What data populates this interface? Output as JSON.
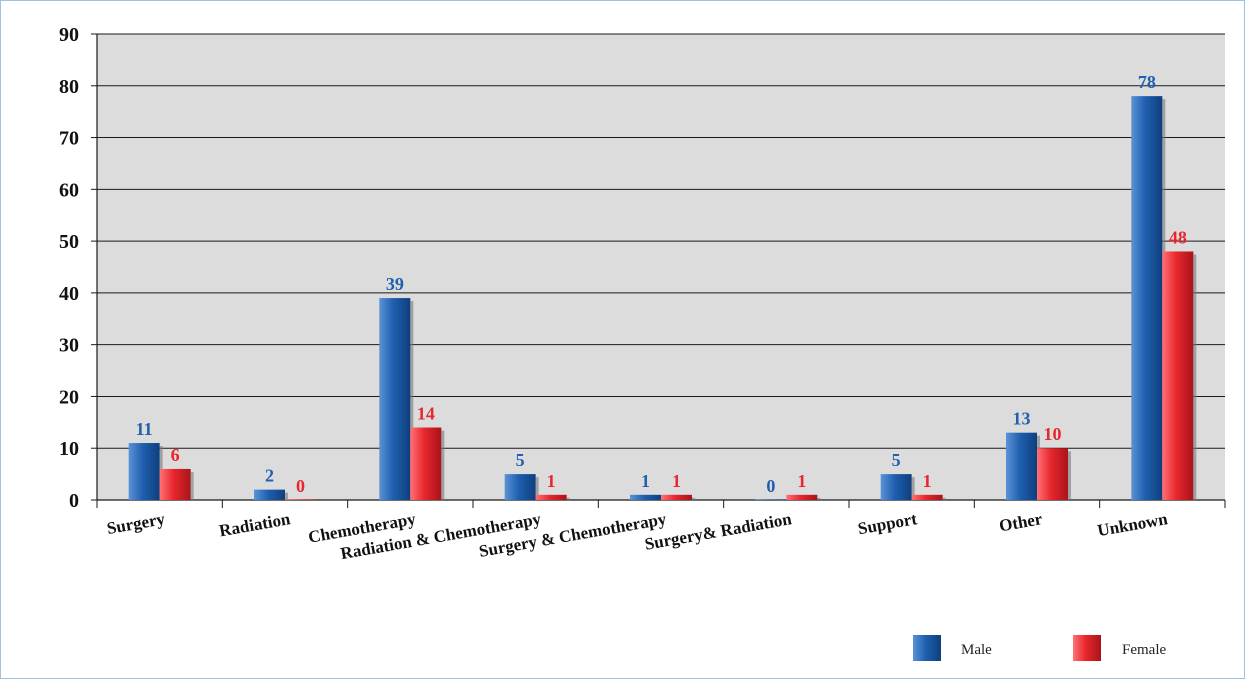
{
  "chart_data": {
    "type": "bar",
    "categories": [
      "Surgery",
      "Radiation",
      "Chemotherapy",
      "Radiation & Chemotherapy",
      "Surgery & Chemotherapy",
      "Surgery& Radiation",
      "Support",
      "Other",
      "Unknown"
    ],
    "series": [
      {
        "name": "Male",
        "values": [
          11,
          2,
          39,
          5,
          1,
          0,
          5,
          13,
          78
        ],
        "color": "#1f5fae"
      },
      {
        "name": "Female",
        "values": [
          6,
          0,
          14,
          1,
          1,
          1,
          1,
          10,
          48
        ],
        "color": "#e8262d"
      }
    ],
    "yticks": [
      0,
      10,
      20,
      30,
      40,
      50,
      60,
      70,
      80,
      90
    ],
    "ylim": [
      0,
      90
    ],
    "grid": true,
    "plot_background": "#dcdcdc",
    "data_labels": true,
    "legend_position": "bottom-right"
  }
}
